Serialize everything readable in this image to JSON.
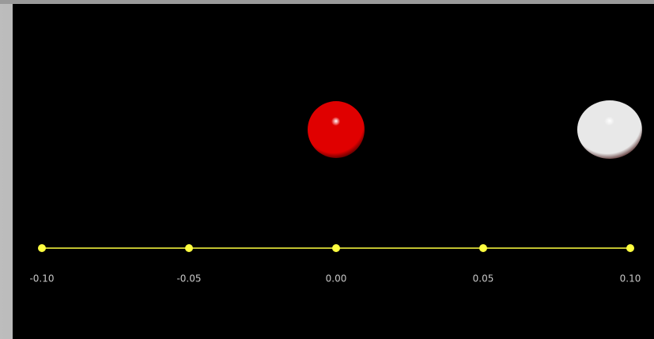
{
  "axis": {
    "xlim": [
      -0.1,
      0.1
    ],
    "xticks": [
      {
        "value": -0.1,
        "label": "-0.10"
      },
      {
        "value": -0.05,
        "label": "-0.05"
      },
      {
        "value": 0,
        "label": "0.00"
      },
      {
        "value": 0.05,
        "label": "0.05"
      },
      {
        "value": 0.1,
        "label": "0.10"
      }
    ],
    "color": "#ffff40"
  },
  "atoms": [
    {
      "x": 0,
      "color": "#e00000"
    },
    {
      "x": 0.093,
      "color": "#e8e8e8"
    }
  ]
}
